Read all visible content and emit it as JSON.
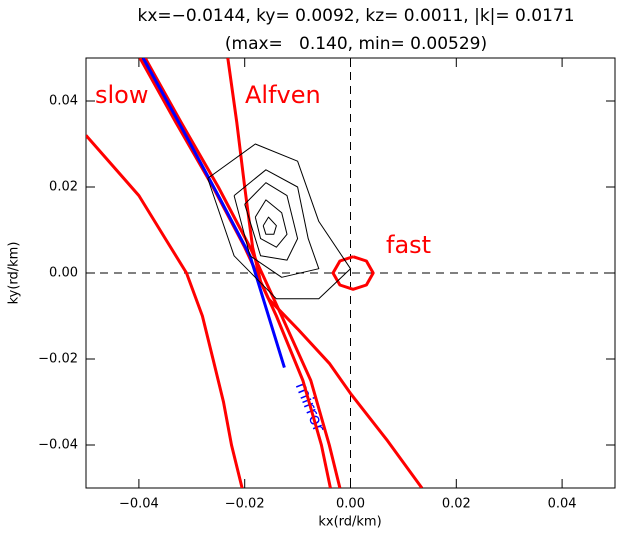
{
  "chart_data": {
    "type": "line",
    "title": "kx=−0.0144, ky= 0.0092, kz= 0.0011, |k|= 0.0171",
    "subtitle": "(max=   0.140, min= 0.00529)",
    "x_label": "kx(rd/km)",
    "y_label": "ky(rd/km)",
    "annotations": [
      "slow",
      "Alfven",
      "fast",
      "mirror"
    ],
    "xlim": [
      -0.05,
      0.05
    ],
    "ylim": [
      -0.05,
      0.05
    ],
    "xticks": [
      {
        "value": -0.04,
        "label": "−0.04"
      },
      {
        "value": -0.02,
        "label": "−0.02"
      },
      {
        "value": 0,
        "label": "0.00"
      },
      0.02,
      0.04
    ],
    "yticks": [
      {
        "value": -0.04,
        "label": "−0.04"
      },
      {
        "value": -0.02,
        "label": "−0.02"
      },
      {
        "value": 0,
        "label": "0.00"
      },
      0.02,
      0.04
    ],
    "hline": 0,
    "vline": 0,
    "series": [
      {
        "color": "#ff0000",
        "width": 3,
        "x": [
          -0.05,
          -0.04,
          -0.035,
          -0.031,
          -0.028,
          -0.026,
          -0.024,
          -0.0225,
          -0.0205
        ],
        "y": [
          0.032,
          0.018,
          0.008,
          0.0,
          -0.01,
          -0.02,
          -0.03,
          -0.04,
          -0.05
        ]
      },
      {
        "color": "#ff0000",
        "width": 3,
        "x": [
          -0.0398,
          -0.033,
          -0.026,
          -0.02,
          -0.014,
          -0.009,
          -0.0055,
          -0.0038
        ],
        "y": [
          0.05,
          0.035,
          0.02,
          0.006,
          -0.01,
          -0.025,
          -0.04,
          -0.05
        ]
      },
      {
        "color": "#ff0000",
        "width": 3,
        "x": [
          -0.0388,
          -0.032,
          -0.025,
          -0.019,
          -0.013,
          -0.0075,
          -0.004,
          -0.002
        ],
        "y": [
          0.05,
          0.035,
          0.02,
          0.006,
          -0.01,
          -0.025,
          -0.04,
          -0.05
        ]
      },
      {
        "color": "#ff0000",
        "width": 3,
        "x": [
          -0.0232,
          -0.0215,
          -0.02,
          -0.0185,
          -0.017,
          -0.0155
        ],
        "y": [
          0.05,
          0.035,
          0.02,
          0.006,
          -0.002,
          -0.006
        ]
      },
      {
        "color": "#ff0000",
        "width": 3,
        "x": [
          -0.0155,
          -0.01,
          -0.004,
          0.0,
          0.007,
          0.0135
        ],
        "y": [
          -0.006,
          -0.013,
          -0.021,
          -0.028,
          -0.039,
          -0.05
        ]
      },
      {
        "color": "#0000ff",
        "width": 3,
        "x": [
          -0.0392,
          -0.032,
          -0.025,
          -0.019,
          -0.0125
        ],
        "y": [
          0.05,
          0.034,
          0.018,
          0.004,
          -0.022
        ]
      },
      {
        "color": "#ff0000",
        "width": 3,
        "x": [
          0.0005,
          0.003,
          0.0043,
          0.003,
          0.0005,
          -0.002,
          -0.0033,
          -0.002,
          0.0005
        ],
        "y": [
          0.0038,
          0.0028,
          0.0,
          -0.0028,
          -0.0038,
          -0.0028,
          0.0,
          0.0028,
          0.0038
        ]
      },
      {
        "color": "#000000",
        "width": 1,
        "x": [
          -0.027,
          -0.018,
          -0.01,
          -0.006,
          0.0,
          -0.006,
          -0.014,
          -0.022,
          -0.027
        ],
        "y": [
          0.022,
          0.03,
          0.026,
          0.012,
          0.001,
          -0.006,
          -0.006,
          0.004,
          0.022
        ]
      },
      {
        "color": "#000000",
        "width": 1,
        "x": [
          -0.022,
          -0.016,
          -0.01,
          -0.008,
          -0.006,
          -0.013,
          -0.019,
          -0.022
        ],
        "y": [
          0.018,
          0.024,
          0.02,
          0.008,
          0.001,
          -0.001,
          0.004,
          0.018
        ]
      },
      {
        "color": "#000000",
        "width": 1,
        "x": [
          -0.02,
          -0.016,
          -0.012,
          -0.01,
          -0.012,
          -0.017,
          -0.02
        ],
        "y": [
          0.016,
          0.021,
          0.018,
          0.008,
          0.003,
          0.004,
          0.016
        ]
      },
      {
        "color": "#000000",
        "width": 1,
        "x": [
          -0.018,
          -0.016,
          -0.013,
          -0.012,
          -0.014,
          -0.017,
          -0.018
        ],
        "y": [
          0.013,
          0.017,
          0.014,
          0.009,
          0.006,
          0.008,
          0.013
        ]
      },
      {
        "color": "#000000",
        "width": 1,
        "x": [
          -0.0165,
          -0.0155,
          -0.014,
          -0.0145,
          -0.016,
          -0.0165
        ],
        "y": [
          0.011,
          0.013,
          0.011,
          0.009,
          0.009,
          0.011
        ]
      }
    ]
  }
}
